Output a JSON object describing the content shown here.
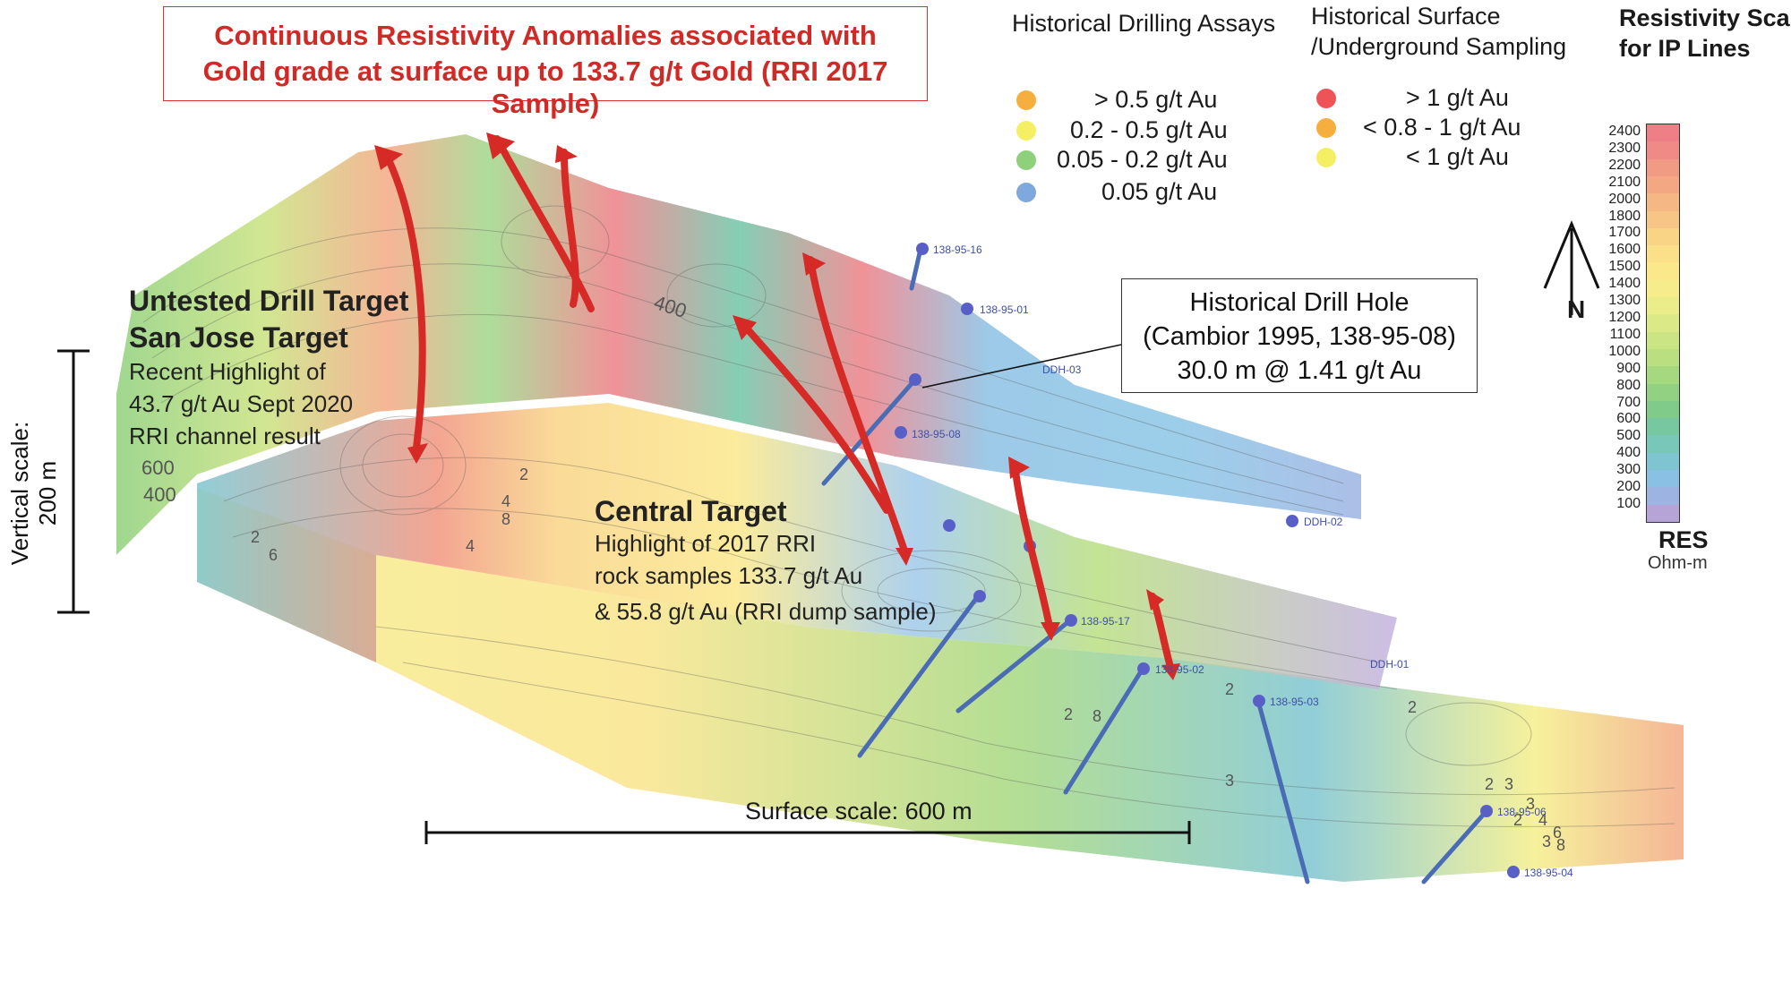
{
  "title": {
    "line1": "Continuous Resistivity Anomalies associated with",
    "line2": "Gold grade at surface up to 133.7 g/t Gold (RRI 2017 Sample)"
  },
  "legend_drilling": {
    "header": "Historical Drilling Assays",
    "items": [
      {
        "label": "> 0.5 g/t Au",
        "color": "#f6ae3f"
      },
      {
        "label": "0.2 - 0.5 g/t Au",
        "color": "#f4ef63"
      },
      {
        "label": "0.05 - 0.2 g/t Au",
        "color": "#8fd07c"
      },
      {
        "label": "0.05 g/t Au",
        "color": "#7fa8dd"
      }
    ]
  },
  "legend_surface": {
    "header_line1": "Historical Surface",
    "header_line2": "/Underground Sampling",
    "items": [
      {
        "label": "> 1 g/t Au",
        "color": "#ee5357"
      },
      {
        "label": "< 0.8 - 1 g/t Au",
        "color": "#f6ae3f"
      },
      {
        "label": "< 1 g/t Au",
        "color": "#f4ef63"
      }
    ]
  },
  "resistivity_scale": {
    "header_line1": "Resistivity Scale",
    "header_line2": "for IP Lines",
    "ticks": [
      "2400",
      "2300",
      "2200",
      "2100",
      "2000",
      "1800",
      "1700",
      "1600",
      "1500",
      "1400",
      "1300",
      "1200",
      "1100",
      "1000",
      "900",
      "800",
      "700",
      "600",
      "500",
      "400",
      "300",
      "200",
      "100"
    ],
    "colors": [
      "#ee7f86",
      "#ef8a86",
      "#f19a84",
      "#f3a883",
      "#f5b784",
      "#f7c585",
      "#f9d486",
      "#fbe089",
      "#fbe88b",
      "#f6ec8c",
      "#eaed8a",
      "#dbea87",
      "#cbe584",
      "#b9df81",
      "#a6d880",
      "#92d181",
      "#80cb8a",
      "#77c8a0",
      "#78c7b9",
      "#7ec5d1",
      "#8ac0e3",
      "#9db4e2",
      "#b6a4d6"
    ],
    "unit_main": "RES",
    "unit_sub": "Ohm-m"
  },
  "north_arrow": {
    "label": "N",
    "icon": "north-arrow-icon"
  },
  "targets": {
    "san_jose": {
      "title_line1": "Untested Drill Target",
      "title_line2": "San Jose Target",
      "desc_line1": "Recent Highlight of",
      "desc_line2": "43.7 g/t Au  Sept 2020",
      "desc_line3": "RRI channel result"
    },
    "central": {
      "title": "Central Target",
      "desc_line1": "Highlight of 2017 RRI",
      "desc_line2": "rock samples 133.7 g/t Au",
      "desc_line3": "& 55.8 g/t Au (RRI dump sample)"
    }
  },
  "callout": {
    "line1": "Historical Drill Hole",
    "line2": "(Cambior 1995, 138-95-08)",
    "line3": "30.0 m @ 1.41 g/t Au"
  },
  "vertical_scale": {
    "line1": "Vertical scale:",
    "line2": "200 m"
  },
  "surface_scale": {
    "label": "Surface scale:  600 m"
  },
  "drill_holes": [
    "138-95-16",
    "138-95-01",
    "DDH-03",
    "138-95-08",
    "DDH-02",
    "138-95-17",
    "DDH-01",
    "138-95-02",
    "138-95-03",
    "138-95-06",
    "138-95-04"
  ],
  "contour_numbers": [
    "400",
    "600",
    "400",
    "2",
    "2",
    "6",
    "3",
    "4",
    "2",
    "2",
    "2",
    "3",
    "3",
    "2",
    "4",
    "6",
    "3",
    "8",
    "8",
    "4",
    "2",
    "8"
  ]
}
